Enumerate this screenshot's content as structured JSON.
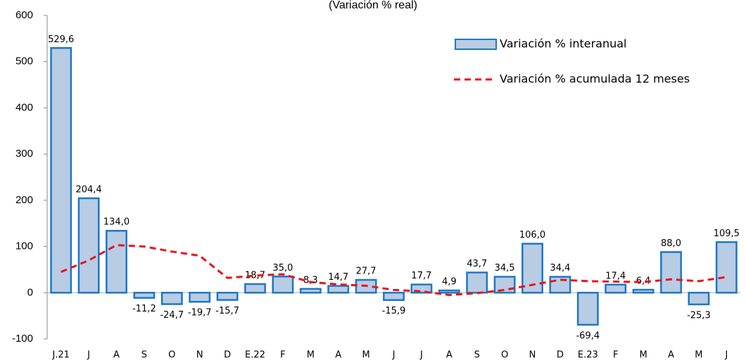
{
  "chart_data": {
    "type": "bar",
    "title": "(Variación % real)",
    "categories": [
      "J.21",
      "J",
      "A",
      "S",
      "O",
      "N",
      "D",
      "E.22",
      "F",
      "M",
      "A",
      "M",
      "J",
      "J",
      "A",
      "S",
      "O",
      "N",
      "D",
      "E.23",
      "F",
      "M",
      "A",
      "M",
      "J"
    ],
    "series": [
      {
        "name": "Variación % interanual",
        "type": "bar",
        "color": "#b8cce4",
        "stroke": "#1f77c4",
        "values": [
          529.6,
          204.4,
          134.0,
          -11.2,
          -24.7,
          -19.7,
          -15.7,
          18.7,
          35.0,
          8.3,
          14.7,
          27.7,
          -15.9,
          17.7,
          4.9,
          43.7,
          34.5,
          106.0,
          34.4,
          -69.4,
          17.4,
          6.4,
          88.0,
          -25.3,
          109.5
        ],
        "value_labels": [
          "529,6",
          "204,4",
          "134,0",
          "-11,2",
          "-24,7",
          "-19,7",
          "-15,7",
          "18,7",
          "35,0",
          "8,3",
          "14,7",
          "27,7",
          "-15,9",
          "17,7",
          "4,9",
          "43,7",
          "34,5",
          "106,0",
          "34,4",
          "-69,4",
          "17,4",
          "6,4",
          "88,0",
          "-25,3",
          "109,5"
        ]
      },
      {
        "name": "Variación % acumulada 12 meses",
        "type": "line",
        "color": "#e8141b",
        "style": "dashed",
        "values": [
          45,
          70,
          103,
          100,
          89,
          80,
          32,
          37,
          40,
          23,
          18,
          15,
          6,
          3,
          -5,
          -1,
          6,
          17,
          28,
          25,
          24,
          23,
          29,
          25,
          34
        ]
      }
    ],
    "ylim": [
      -100,
      600
    ],
    "yticks": [
      -100,
      0,
      100,
      200,
      300,
      400,
      500,
      600
    ]
  }
}
